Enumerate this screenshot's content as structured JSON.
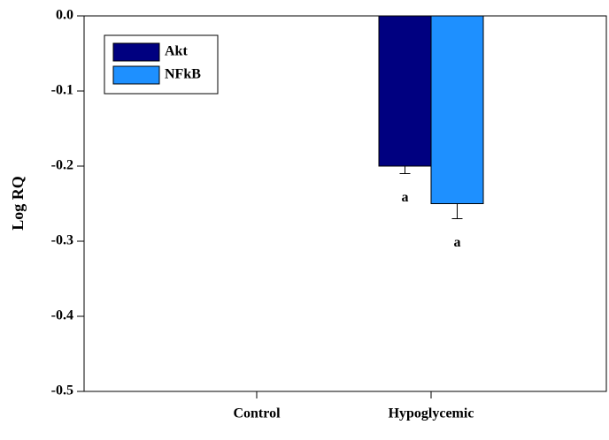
{
  "chart_data": {
    "type": "bar",
    "y_label": "Log RQ",
    "categories": [
      "Control",
      "Hypoglycemic"
    ],
    "series": [
      {
        "name": "Akt",
        "color": "#000080",
        "values": [
          0,
          -0.2
        ],
        "errors": [
          0,
          0.01
        ],
        "annotations": [
          null,
          "a"
        ]
      },
      {
        "name": "NFkB",
        "color": "#1e90ff",
        "values": [
          0,
          -0.25
        ],
        "errors": [
          0,
          0.02
        ],
        "annotations": [
          null,
          "a"
        ]
      }
    ],
    "ylim": [
      -0.5,
      0
    ],
    "yticks": [
      {
        "value": 0,
        "label": "0.0"
      },
      -0.1,
      -0.2,
      -0.3,
      -0.4,
      -0.5
    ],
    "legend": "upper left"
  }
}
